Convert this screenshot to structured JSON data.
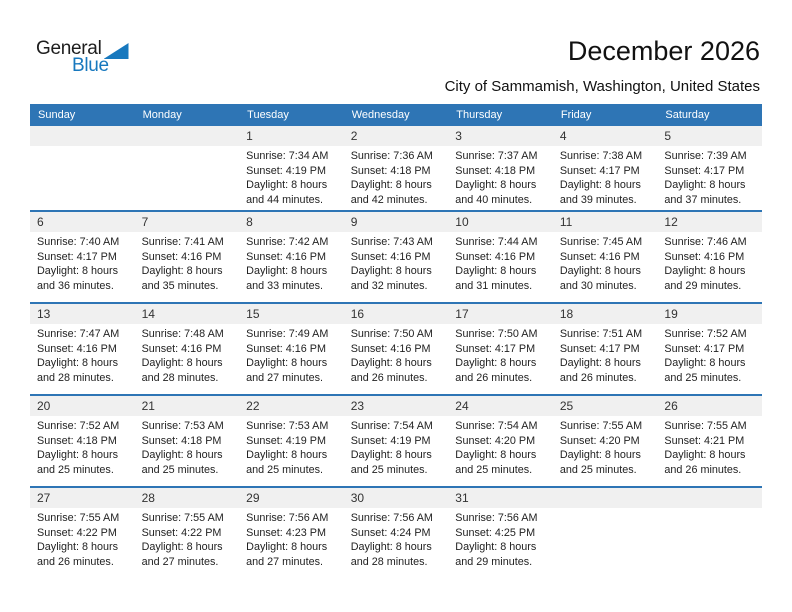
{
  "logo": {
    "line1": "General",
    "line2": "Blue"
  },
  "header": {
    "title": "December 2026",
    "subtitle": "City of Sammamish, Washington, United States"
  },
  "weekday_headers": [
    "Sunday",
    "Monday",
    "Tuesday",
    "Wednesday",
    "Thursday",
    "Friday",
    "Saturday"
  ],
  "labels": {
    "sunrise": "Sunrise:",
    "sunset": "Sunset:",
    "daylight": "Daylight:"
  },
  "colors": {
    "header_blue": "#2E75B5",
    "row_border_blue": "#2E75B5",
    "number_strip_gray": "#F0F0F0",
    "logo_blue": "#1778BE"
  },
  "weeks": [
    [
      null,
      null,
      {
        "day": "1",
        "sunrise": "7:34 AM",
        "sunset": "4:19 PM",
        "daylight": "8 hours and 44 minutes."
      },
      {
        "day": "2",
        "sunrise": "7:36 AM",
        "sunset": "4:18 PM",
        "daylight": "8 hours and 42 minutes."
      },
      {
        "day": "3",
        "sunrise": "7:37 AM",
        "sunset": "4:18 PM",
        "daylight": "8 hours and 40 minutes."
      },
      {
        "day": "4",
        "sunrise": "7:38 AM",
        "sunset": "4:17 PM",
        "daylight": "8 hours and 39 minutes."
      },
      {
        "day": "5",
        "sunrise": "7:39 AM",
        "sunset": "4:17 PM",
        "daylight": "8 hours and 37 minutes."
      }
    ],
    [
      {
        "day": "6",
        "sunrise": "7:40 AM",
        "sunset": "4:17 PM",
        "daylight": "8 hours and 36 minutes."
      },
      {
        "day": "7",
        "sunrise": "7:41 AM",
        "sunset": "4:16 PM",
        "daylight": "8 hours and 35 minutes."
      },
      {
        "day": "8",
        "sunrise": "7:42 AM",
        "sunset": "4:16 PM",
        "daylight": "8 hours and 33 minutes."
      },
      {
        "day": "9",
        "sunrise": "7:43 AM",
        "sunset": "4:16 PM",
        "daylight": "8 hours and 32 minutes."
      },
      {
        "day": "10",
        "sunrise": "7:44 AM",
        "sunset": "4:16 PM",
        "daylight": "8 hours and 31 minutes."
      },
      {
        "day": "11",
        "sunrise": "7:45 AM",
        "sunset": "4:16 PM",
        "daylight": "8 hours and 30 minutes."
      },
      {
        "day": "12",
        "sunrise": "7:46 AM",
        "sunset": "4:16 PM",
        "daylight": "8 hours and 29 minutes."
      }
    ],
    [
      {
        "day": "13",
        "sunrise": "7:47 AM",
        "sunset": "4:16 PM",
        "daylight": "8 hours and 28 minutes."
      },
      {
        "day": "14",
        "sunrise": "7:48 AM",
        "sunset": "4:16 PM",
        "daylight": "8 hours and 28 minutes."
      },
      {
        "day": "15",
        "sunrise": "7:49 AM",
        "sunset": "4:16 PM",
        "daylight": "8 hours and 27 minutes."
      },
      {
        "day": "16",
        "sunrise": "7:50 AM",
        "sunset": "4:16 PM",
        "daylight": "8 hours and 26 minutes."
      },
      {
        "day": "17",
        "sunrise": "7:50 AM",
        "sunset": "4:17 PM",
        "daylight": "8 hours and 26 minutes."
      },
      {
        "day": "18",
        "sunrise": "7:51 AM",
        "sunset": "4:17 PM",
        "daylight": "8 hours and 26 minutes."
      },
      {
        "day": "19",
        "sunrise": "7:52 AM",
        "sunset": "4:17 PM",
        "daylight": "8 hours and 25 minutes."
      }
    ],
    [
      {
        "day": "20",
        "sunrise": "7:52 AM",
        "sunset": "4:18 PM",
        "daylight": "8 hours and 25 minutes."
      },
      {
        "day": "21",
        "sunrise": "7:53 AM",
        "sunset": "4:18 PM",
        "daylight": "8 hours and 25 minutes."
      },
      {
        "day": "22",
        "sunrise": "7:53 AM",
        "sunset": "4:19 PM",
        "daylight": "8 hours and 25 minutes."
      },
      {
        "day": "23",
        "sunrise": "7:54 AM",
        "sunset": "4:19 PM",
        "daylight": "8 hours and 25 minutes."
      },
      {
        "day": "24",
        "sunrise": "7:54 AM",
        "sunset": "4:20 PM",
        "daylight": "8 hours and 25 minutes."
      },
      {
        "day": "25",
        "sunrise": "7:55 AM",
        "sunset": "4:20 PM",
        "daylight": "8 hours and 25 minutes."
      },
      {
        "day": "26",
        "sunrise": "7:55 AM",
        "sunset": "4:21 PM",
        "daylight": "8 hours and 26 minutes."
      }
    ],
    [
      {
        "day": "27",
        "sunrise": "7:55 AM",
        "sunset": "4:22 PM",
        "daylight": "8 hours and 26 minutes."
      },
      {
        "day": "28",
        "sunrise": "7:55 AM",
        "sunset": "4:22 PM",
        "daylight": "8 hours and 27 minutes."
      },
      {
        "day": "29",
        "sunrise": "7:56 AM",
        "sunset": "4:23 PM",
        "daylight": "8 hours and 27 minutes."
      },
      {
        "day": "30",
        "sunrise": "7:56 AM",
        "sunset": "4:24 PM",
        "daylight": "8 hours and 28 minutes."
      },
      {
        "day": "31",
        "sunrise": "7:56 AM",
        "sunset": "4:25 PM",
        "daylight": "8 hours and 29 minutes."
      },
      null,
      null
    ]
  ]
}
